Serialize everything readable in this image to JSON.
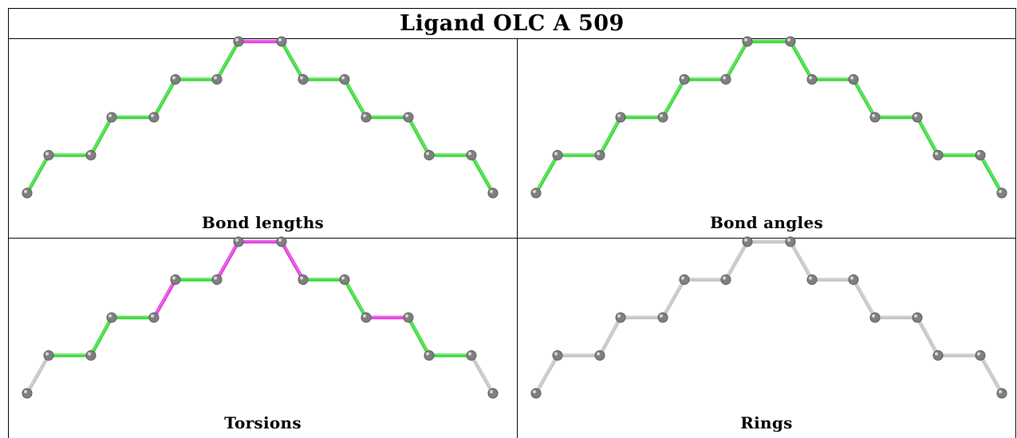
{
  "title": "Ligand OLC A 509",
  "colors": {
    "good": "#3ad93a",
    "outlier": "#e03ee0",
    "neutral": "#c4c4c4",
    "atom": "#808080"
  },
  "molecule": {
    "atoms": [
      [
        0,
        0
      ],
      [
        1,
        1
      ],
      [
        2,
        1
      ],
      [
        3,
        2
      ],
      [
        4,
        2
      ],
      [
        5,
        3
      ],
      [
        6,
        3
      ],
      [
        7,
        4
      ],
      [
        8,
        4
      ],
      [
        9,
        3
      ],
      [
        10,
        3
      ],
      [
        11,
        2
      ],
      [
        12,
        2
      ],
      [
        13,
        1
      ],
      [
        14,
        1
      ],
      [
        15,
        0
      ]
    ]
  },
  "panels": [
    {
      "caption": "Bond lengths",
      "bonds": [
        "good",
        "good",
        "good",
        "good",
        "good",
        "good",
        "good",
        "outlier",
        "good",
        "good",
        "good",
        "good",
        "good",
        "good",
        "good"
      ]
    },
    {
      "caption": "Bond angles",
      "bonds": [
        "good",
        "good",
        "good",
        "good",
        "good",
        "good",
        "good",
        "good",
        "good",
        "good",
        "good",
        "good",
        "good",
        "good",
        "good"
      ]
    },
    {
      "caption": "Torsions",
      "bonds": [
        "neutral",
        "good",
        "good",
        "good",
        "outlier",
        "good",
        "outlier",
        "outlier",
        "outlier",
        "good",
        "good",
        "outlier",
        "good",
        "good",
        "neutral"
      ]
    },
    {
      "caption": "Rings",
      "bonds": [
        "neutral",
        "neutral",
        "neutral",
        "neutral",
        "neutral",
        "neutral",
        "neutral",
        "neutral",
        "neutral",
        "neutral",
        "neutral",
        "neutral",
        "neutral",
        "neutral",
        "neutral"
      ]
    }
  ]
}
